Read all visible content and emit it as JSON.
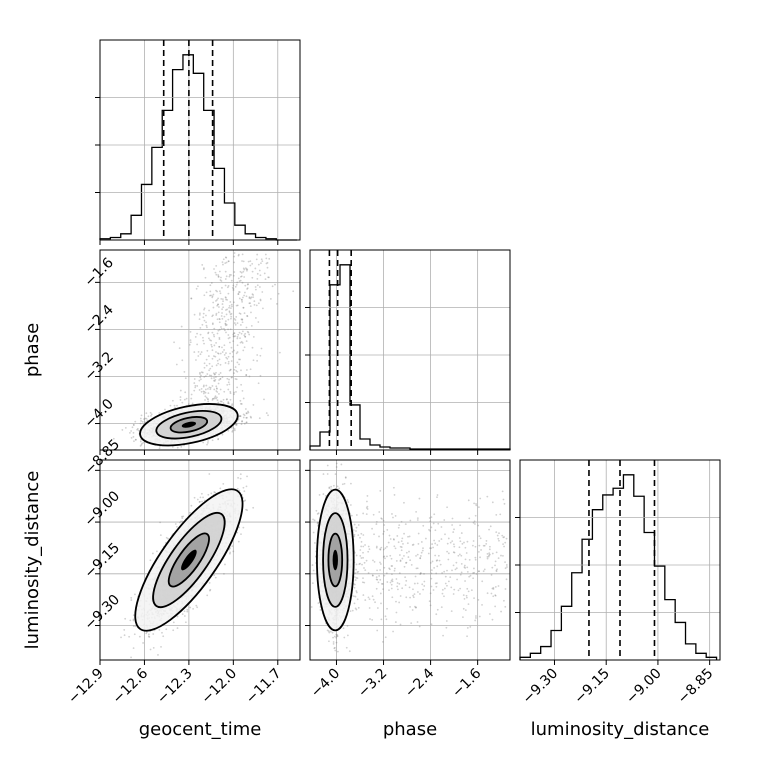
{
  "chart_data": {
    "type": "corner",
    "parameters": [
      "geocent_time",
      "phase",
      "luminosity_distance"
    ],
    "grid": true,
    "ranges": {
      "geocent_time": [
        -12.9,
        -11.55
      ],
      "phase": [
        -4.45,
        -1.05
      ],
      "luminosity_distance": [
        -9.4,
        -8.82
      ]
    },
    "ticks": {
      "geocent_time": [
        "-12.9",
        "-12.6",
        "-12.3",
        "-12.0",
        "-11.7"
      ],
      "phase": [
        "-4.0",
        "-3.2",
        "-2.4",
        "-1.6"
      ],
      "luminosity_distance": [
        "-9.30",
        "-9.15",
        "-9.00",
        "-8.85"
      ]
    },
    "quantiles": {
      "geocent_time": [
        -12.47,
        -12.3,
        -12.14
      ],
      "phase": [
        -4.12,
        -3.98,
        -3.75
      ],
      "luminosity_distance": [
        -9.2,
        -9.11,
        -9.01
      ]
    },
    "histograms": {
      "geocent_time": {
        "edges": [
          -12.9,
          -12.83,
          -12.76,
          -12.69,
          -12.62,
          -12.55,
          -12.48,
          -12.41,
          -12.34,
          -12.27,
          -12.2,
          -12.13,
          -12.06,
          -11.99,
          -11.92,
          -11.85,
          -11.78,
          -11.71,
          -11.64,
          -11.57
        ],
        "counts": [
          1,
          2,
          5,
          20,
          45,
          75,
          105,
          138,
          150,
          135,
          105,
          58,
          30,
          12,
          5,
          2,
          1,
          0,
          0
        ]
      },
      "phase": {
        "edges": [
          -4.45,
          -4.28,
          -4.11,
          -3.94,
          -3.77,
          -3.6,
          -3.43,
          -3.26,
          -3.09,
          -2.92,
          -2.75,
          -2.58,
          -2.41,
          -2.24,
          -2.07,
          -1.9,
          -1.73,
          -1.56,
          -1.39,
          -1.22,
          -1.05
        ],
        "counts": [
          4,
          18,
          165,
          185,
          45,
          11,
          5,
          3,
          2,
          2,
          1,
          1,
          1,
          1,
          1,
          1,
          1,
          1,
          1,
          1
        ]
      },
      "luminosity_distance": {
        "edges": [
          -9.4,
          -9.37,
          -9.34,
          -9.31,
          -9.28,
          -9.25,
          -9.22,
          -9.19,
          -9.16,
          -9.13,
          -9.1,
          -9.07,
          -9.04,
          -9.01,
          -8.98,
          -8.95,
          -8.92,
          -8.89,
          -8.86,
          -8.83
        ],
        "counts": [
          2,
          5,
          10,
          22,
          40,
          65,
          90,
          112,
          123,
          128,
          138,
          122,
          95,
          70,
          45,
          28,
          12,
          5,
          2
        ]
      }
    },
    "correlations": {
      "phase_vs_geocent_time": "weak positive; dense core near geocent_time -12.3, phase -4.0 with sparse upward tail toward phase -1.2",
      "luminosity_distance_vs_geocent_time": "strong positive correlation; core near -12.3, -9.11",
      "luminosity_distance_vs_phase": "core near phase -4.0, luminosity_distance -9.12; scattered points toward phase -1.2"
    }
  },
  "xlabels": [
    "geocent_time",
    "phase",
    "luminosity_distance"
  ],
  "ylabels": [
    "phase",
    "luminosity_distance"
  ],
  "colors": {
    "points": "#7a7a7a",
    "contour": "#000000",
    "grid": "#b0b0b0"
  }
}
